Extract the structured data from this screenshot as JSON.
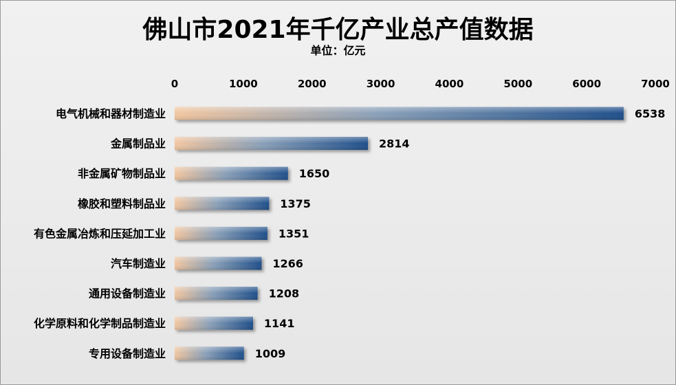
{
  "chart_data": {
    "type": "bar",
    "orientation": "horizontal",
    "title": "佛山市2021年千亿产业总产值数据",
    "subtitle": "单位：亿元",
    "categories": [
      "电气机械和器材制造业",
      "金属制品业",
      "非金属矿物制品业",
      "橡胶和塑料制品业",
      "有色金属冶炼和压延加工业",
      "汽车制造业",
      "通用设备制造业",
      "化学原料和化学制品制造业",
      "专用设备制造业"
    ],
    "values": [
      6538,
      2814,
      1650,
      1375,
      1351,
      1266,
      1208,
      1141,
      1009
    ],
    "xlim": [
      0,
      7000
    ],
    "ticks": [
      0,
      1000,
      2000,
      3000,
      4000,
      5000,
      6000,
      7000
    ],
    "axis_position": "top",
    "grid": false,
    "legend": "none",
    "bar_gradient": [
      "#f2c6a0",
      "#1f4f8a"
    ]
  }
}
